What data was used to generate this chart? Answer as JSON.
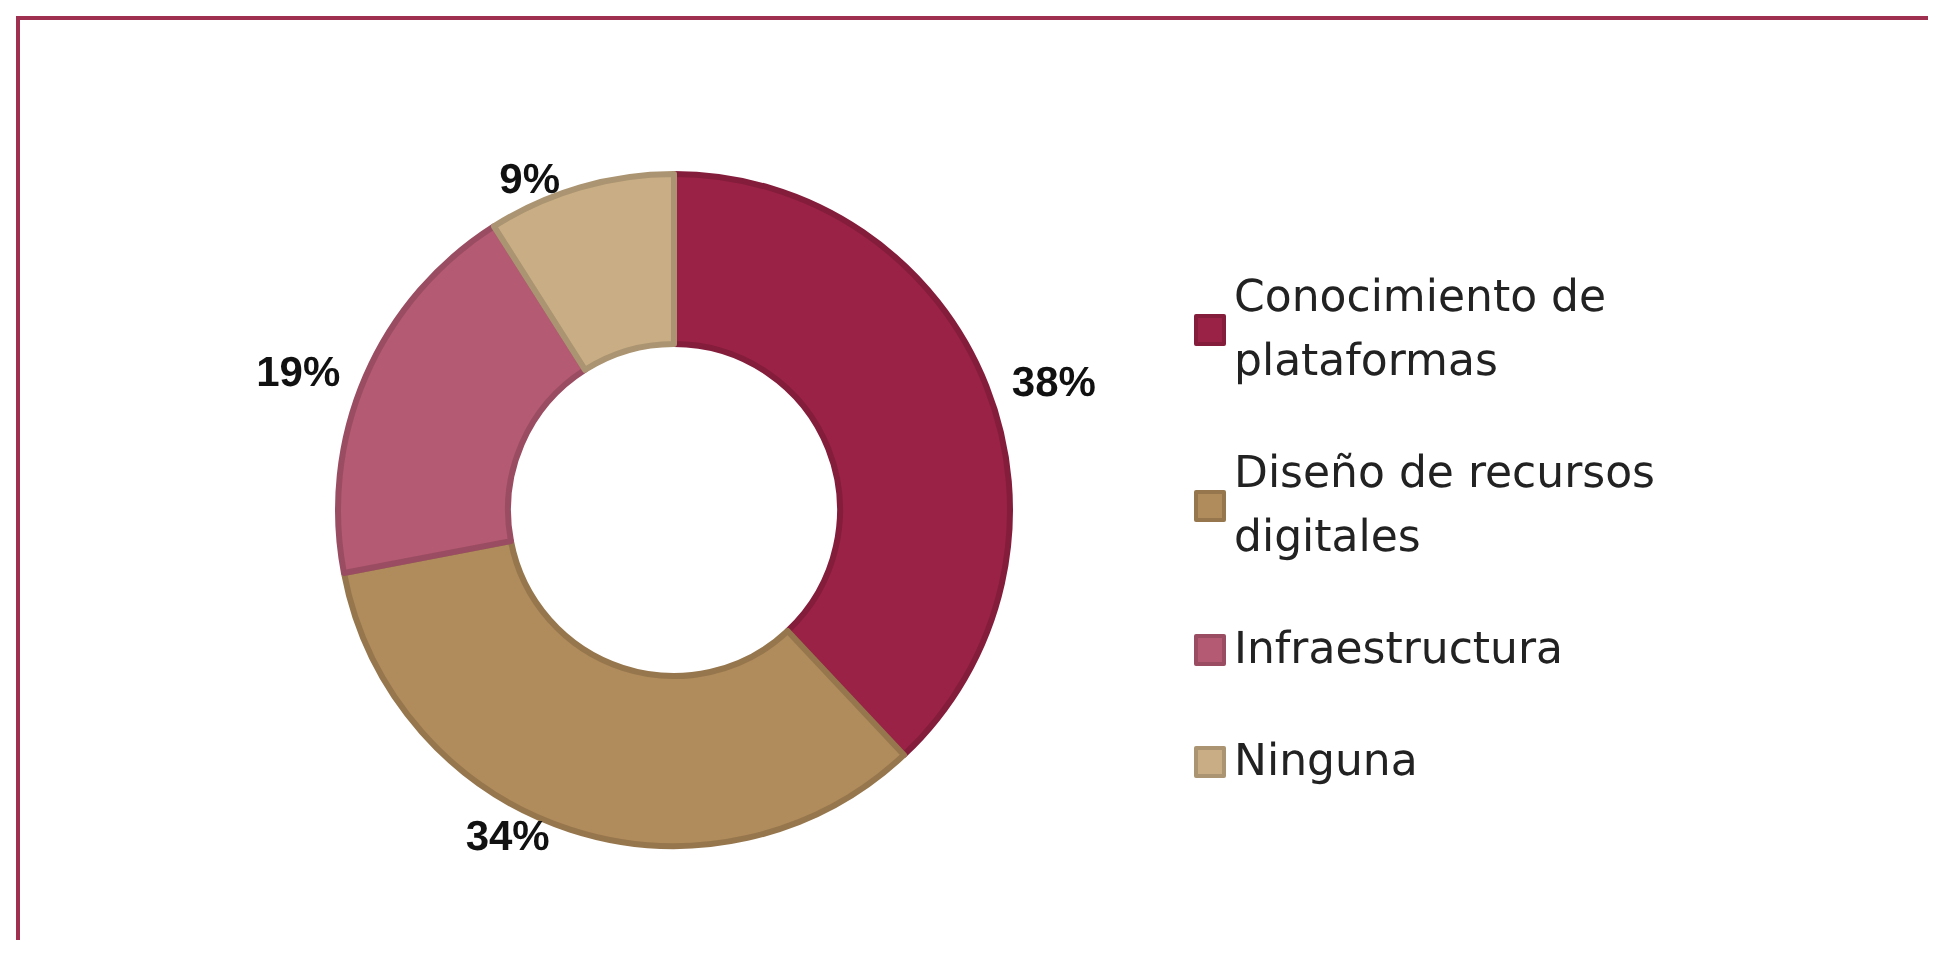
{
  "chart_data": {
    "type": "donut",
    "categories": [
      "Conocimiento de plataformas",
      "Diseño de recursos digitales",
      "Infraestructura",
      "Ninguna"
    ],
    "values": [
      38,
      34,
      19,
      9
    ],
    "colors": [
      "#9b2247",
      "#b08b5b",
      "#b55a73",
      "#c9ae85"
    ],
    "value_labels": [
      "38%",
      "34%",
      "19%",
      "9%"
    ],
    "legend": "right"
  }
}
